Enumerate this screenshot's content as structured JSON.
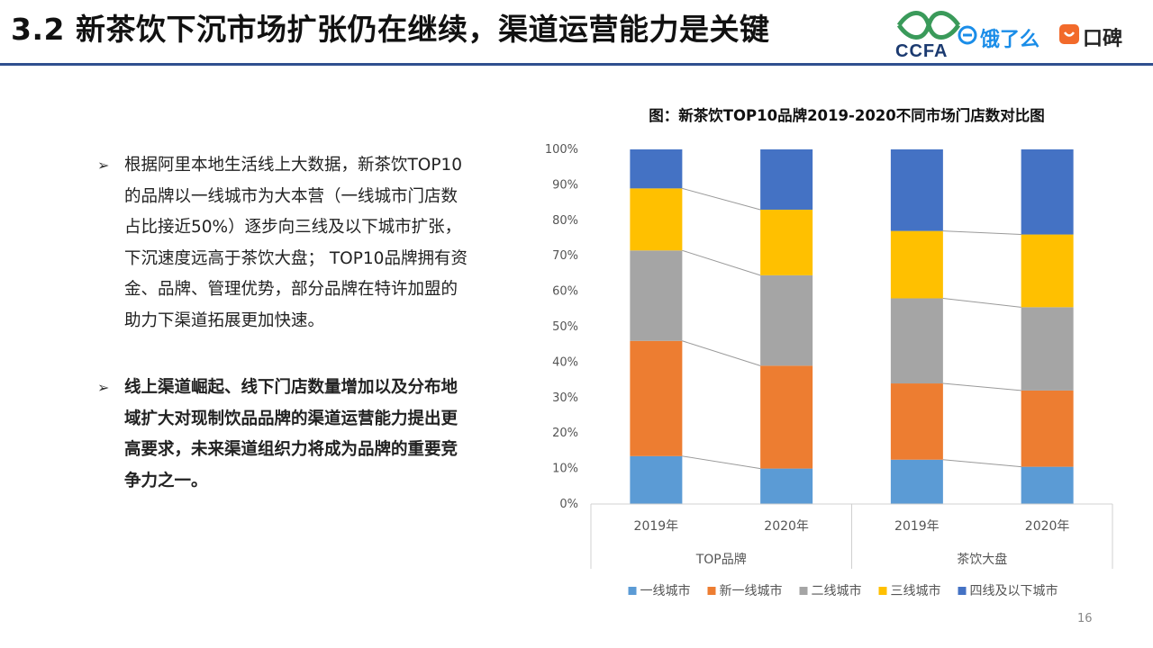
{
  "slide": {
    "title": "3.2 新茶饮下沉市场扩张仍在继续，渠道运营能力是关键",
    "page_number": "16",
    "brand_color": "#2f4f8f"
  },
  "logos": {
    "ccfa": "CCFA",
    "eleme": "饿了么",
    "eleme_icon": "e-circle-icon",
    "koubei": "口碑"
  },
  "bullets": [
    {
      "marker": "➢",
      "lines": [
        "根据阿里本地生活线上大数据，新茶饮TOP10",
        "的品牌以一线城市为大本营（一线城市门店数",
        "占比接近50%）逐步向三线及以下城市扩张，",
        "下沉速度远高于茶饮大盘； TOP10品牌拥有资",
        "金、品牌、管理优势，部分品牌在特许加盟的",
        "助力下渠道拓展更加快速。"
      ]
    },
    {
      "marker": "➢",
      "lines": [
        "线上渠道崛起、线下门店数量增加以及分布地",
        "域扩大对现制饮品品牌的渠道运营能力提出更",
        "高要求，未来渠道组织力将成为品牌的重要竞",
        "争力之一。"
      ]
    }
  ],
  "chart_data": {
    "type": "bar",
    "stacked": "percent",
    "title": "图：新茶饮TOP10品牌2019-2020不同市场门店数对比图",
    "categories": [
      "2019年",
      "2020年",
      "2019年",
      "2020年"
    ],
    "groups": [
      {
        "label": "TOP品牌",
        "categories": [
          "2019年",
          "2020年"
        ]
      },
      {
        "label": "茶饮大盘",
        "categories": [
          "2019年",
          "2020年"
        ]
      }
    ],
    "y_ticks": [
      "0%",
      "10%",
      "20%",
      "30%",
      "40%",
      "50%",
      "60%",
      "70%",
      "80%",
      "90%",
      "100%"
    ],
    "ylim": [
      0,
      100
    ],
    "series_lines": true,
    "series": [
      {
        "name": "一线城市",
        "color": "#5b9bd5",
        "values": [
          13.5,
          10,
          12.5,
          10.5
        ]
      },
      {
        "name": "新一线城市",
        "color": "#ed7d31",
        "values": [
          32.5,
          29,
          21.5,
          21.5
        ]
      },
      {
        "name": "二线城市",
        "color": "#a5a5a5",
        "values": [
          25.5,
          25.5,
          24,
          23.5
        ]
      },
      {
        "name": "三线城市",
        "color": "#ffc000",
        "values": [
          17.5,
          18.5,
          19,
          20.5
        ]
      },
      {
        "name": "四线及以下城市",
        "color": "#4472c4",
        "values": [
          11,
          17,
          23,
          24
        ]
      }
    ],
    "legend_position": "bottom"
  }
}
